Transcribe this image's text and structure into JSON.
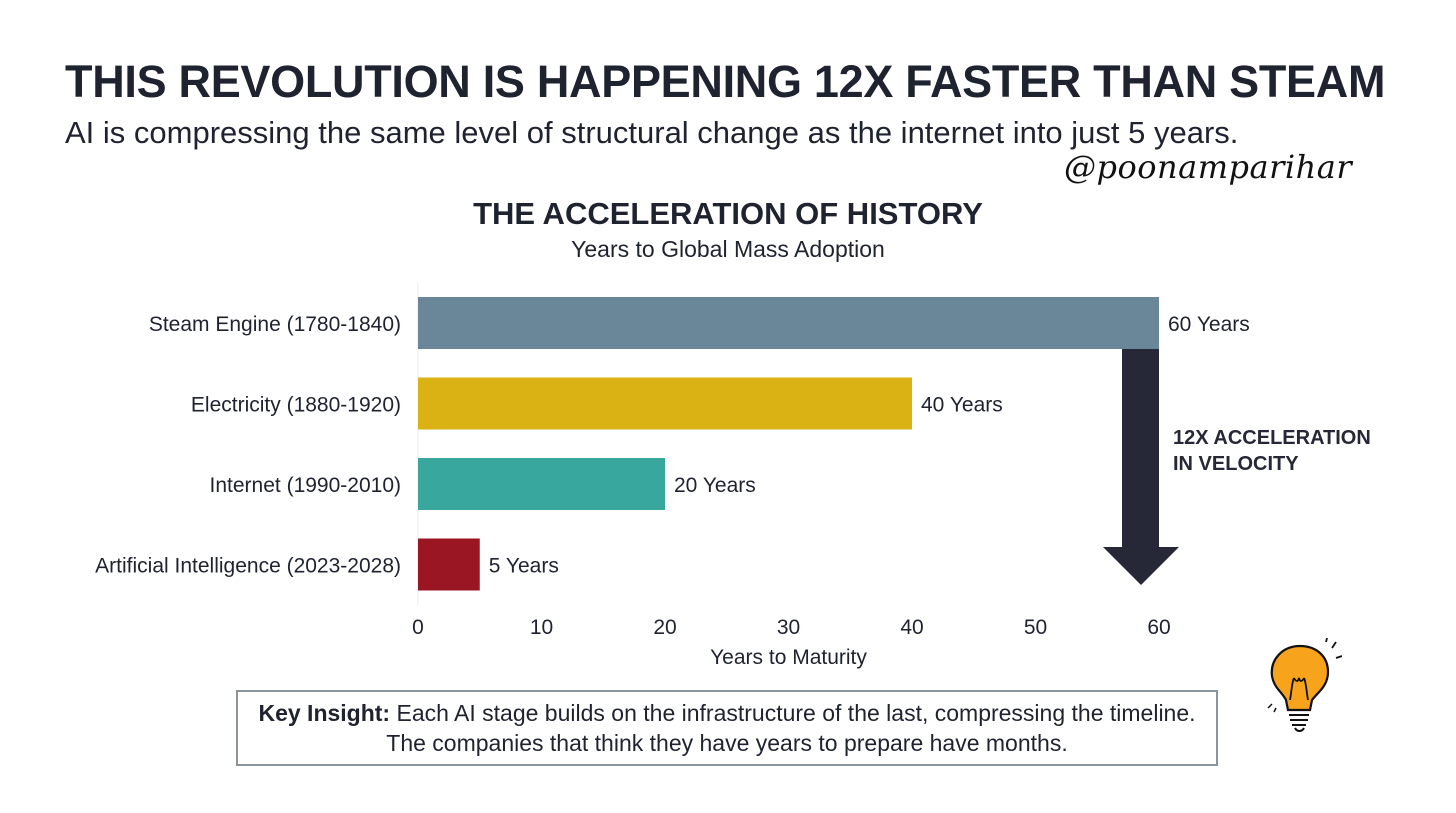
{
  "headline": "THIS REVOLUTION IS HAPPENING 12X FASTER THAN STEAM",
  "subheadline": "AI is compressing the same level of structural change as the internet into just 5 years.",
  "handle": "@poonamparihar",
  "chart_data": {
    "type": "bar",
    "orientation": "horizontal",
    "title": "THE ACCELERATION OF HISTORY",
    "subtitle": "Years to Global Mass Adoption",
    "xlabel": "Years to Maturity",
    "ylabel": "",
    "xlim": [
      0,
      60
    ],
    "ticks": [
      0,
      10,
      20,
      30,
      40,
      50,
      60
    ],
    "categories": [
      "Steam Engine (1780-1840)",
      "Electricity (1880-1920)",
      "Internet (1990-2010)",
      "Artificial Intelligence (2023-2028)"
    ],
    "values": [
      60,
      40,
      20,
      5
    ],
    "value_labels": [
      "60 Years",
      "40 Years",
      "20 Years",
      "5 Years"
    ],
    "colors": [
      "#6a8799",
      "#dbb214",
      "#38a89e",
      "#9b1623"
    ],
    "annotation": {
      "lines": [
        "12X ACCELERATION",
        "IN VELOCITY"
      ],
      "color": "#262838"
    }
  },
  "insight": {
    "label": "Key Insight:",
    "text": " Each AI stage builds on the infrastructure of the last, compressing the timeline. The companies that think they have years to prepare have months."
  }
}
